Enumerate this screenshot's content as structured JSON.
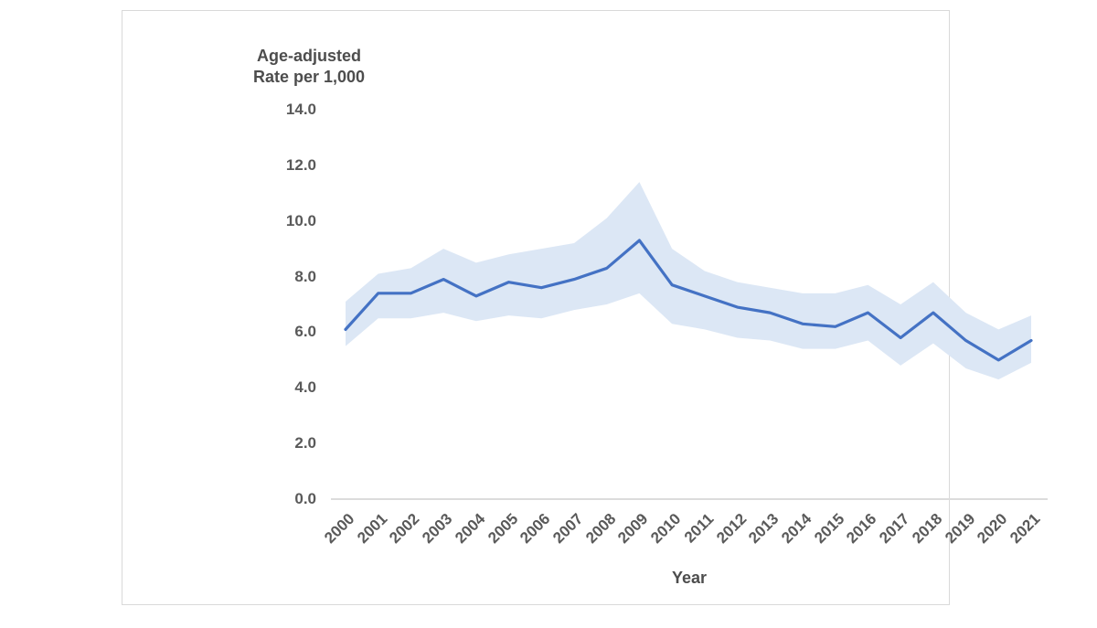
{
  "chart_data": {
    "type": "line",
    "title": "",
    "y_axis_title": "Age-adjusted\nRate per 1,000",
    "x_axis_title": "Year",
    "x": [
      "2000",
      "2001",
      "2002",
      "2003",
      "2004",
      "2005",
      "2006",
      "2007",
      "2008",
      "2009",
      "2010",
      "2011",
      "2012",
      "2013",
      "2014",
      "2015",
      "2016",
      "2017",
      "2018",
      "2019",
      "2020",
      "2021"
    ],
    "series": [
      {
        "name": "Age-adjusted rate per 1,000",
        "role": "line",
        "color": "#4472c4",
        "values": [
          6.1,
          7.4,
          7.4,
          7.9,
          7.3,
          7.8,
          7.6,
          7.9,
          8.3,
          9.3,
          7.7,
          7.3,
          6.9,
          6.7,
          6.3,
          6.2,
          6.7,
          5.8,
          6.7,
          5.7,
          5.0,
          5.7
        ]
      },
      {
        "name": "Upper confidence limit",
        "role": "band-upper",
        "values": [
          7.1,
          8.1,
          8.3,
          9.0,
          8.5,
          8.8,
          9.0,
          9.2,
          10.1,
          11.4,
          9.0,
          8.2,
          7.8,
          7.6,
          7.4,
          7.4,
          7.7,
          7.0,
          7.8,
          6.7,
          6.1,
          6.6
        ]
      },
      {
        "name": "Lower confidence limit",
        "role": "band-lower",
        "values": [
          5.5,
          6.5,
          6.5,
          6.7,
          6.4,
          6.6,
          6.5,
          6.8,
          7.0,
          7.4,
          6.3,
          6.1,
          5.8,
          5.7,
          5.4,
          5.4,
          5.7,
          4.8,
          5.6,
          4.7,
          4.3,
          4.9
        ]
      }
    ],
    "y_ticks": [
      "0.0",
      "2.0",
      "4.0",
      "6.0",
      "8.0",
      "10.0",
      "12.0",
      "14.0"
    ],
    "ylim": [
      0,
      14
    ],
    "grid": "none",
    "legend": "none",
    "band_color": "#dce7f5",
    "line_color": "#4472c4",
    "text_color": "#595959",
    "title_text_color": "#4d4d4d",
    "axis_line_color": "#dcdcdc"
  }
}
